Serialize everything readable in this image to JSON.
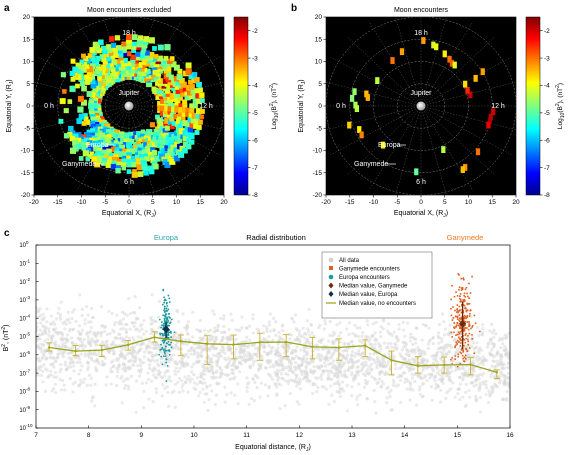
{
  "chart_data": [
    {
      "type": "heatmap",
      "panel": "a",
      "title": "Moon encounters excluded",
      "xlabel_main": "Equatorial X, (R",
      "xlabel_sub": "J",
      "ylabel_main": "Equatorial Y, (R",
      "ylabel_sub": "J",
      "xlim": [
        -20,
        20
      ],
      "ylim": [
        -20,
        20
      ],
      "ticks": [
        -20,
        -15,
        -10,
        -5,
        0,
        5,
        10,
        15,
        20
      ],
      "radial_rings": [
        5,
        10,
        15,
        20
      ],
      "local_time_labels": [
        "18 h",
        "0 h",
        "12 h",
        "6 h"
      ],
      "annotations": [
        "Jupiter",
        "Europa",
        "Ganymede"
      ],
      "colorbar": {
        "label_main": "Log",
        "label_sub": "10",
        "label_rest": "(B",
        "label_sup": "2",
        "label_end": "), (nT",
        "label_sup2": "2",
        "label_close": ")",
        "range": [
          -8,
          -1.5
        ],
        "ticks": [
          "-2",
          "-3",
          "-4",
          "-5",
          "-6",
          "-7",
          "-8"
        ]
      },
      "description_values": {
        "ring_inner_radius_RJ": 6,
        "ring_outer_radius_RJ": 16,
        "typical_log10_power": [
          -6,
          -3
        ]
      }
    },
    {
      "type": "heatmap",
      "panel": "b",
      "title": "Moon encounters",
      "xlabel_main": "Equatorial X, (R",
      "xlabel_sub": "J",
      "ylabel_main": "Equatorial Y, (R",
      "ylabel_sub": "J",
      "xlim": [
        -20,
        20
      ],
      "ylim": [
        -20,
        20
      ],
      "ticks": [
        -20,
        -15,
        -10,
        -5,
        0,
        5,
        10,
        15,
        20
      ],
      "radial_rings": [
        5,
        10,
        15,
        20
      ],
      "local_time_labels": [
        "18 h",
        "0 h",
        "12 h",
        "6 h"
      ],
      "annotations": [
        "Jupiter",
        "Europa",
        "Ganymede"
      ],
      "colorbar": {
        "label_main": "Log",
        "label_sub": "10",
        "label_rest": "(B",
        "label_sup": "2",
        "label_end": "), (nT",
        "label_sup2": "2",
        "label_close": ")",
        "range": [
          -8,
          -1.5
        ],
        "ticks": [
          "-2",
          "-3",
          "-4",
          "-5",
          "-6",
          "-7",
          "-8"
        ]
      }
    },
    {
      "type": "scatter",
      "panel": "c",
      "title_left": "Europa",
      "title_center": "Radial distribution",
      "title_right": "Ganymede",
      "xlabel_main": "Equatorial distance, (R",
      "xlabel_sub": "J",
      "ylabel_main": "B",
      "ylabel_sup": "2",
      "ylabel_end": ", (nT",
      "ylabel_sup2": "2",
      "ylabel_close": ")",
      "xlim": [
        7,
        16
      ],
      "xticks": [
        "7",
        "8",
        "9",
        "10",
        "11",
        "12",
        "13",
        "14",
        "15",
        "16"
      ],
      "ylim_exp": [
        -10,
        0
      ],
      "log_y": true,
      "yticks": [
        {
          "exp": 0,
          "label": "10"
        },
        {
          "exp": -1,
          "label": "10"
        },
        {
          "exp": -2,
          "label": "10"
        },
        {
          "exp": -3,
          "label": "10"
        },
        {
          "exp": -4,
          "label": "10"
        },
        {
          "exp": -5,
          "label": "10"
        },
        {
          "exp": -6,
          "label": "10"
        },
        {
          "exp": -7,
          "label": "10"
        },
        {
          "exp": -8,
          "label": "10"
        },
        {
          "exp": -9,
          "label": "10"
        },
        {
          "exp": -10,
          "label": "10"
        }
      ],
      "ytick_sup": [
        "0",
        "-1",
        "-2",
        "-3",
        "-4",
        "-5",
        "-6",
        "-7",
        "-8",
        "-9",
        "-10"
      ],
      "legend": [
        "All data",
        "Ganymede encounters",
        "Europa encounters",
        "Median value, Ganymede",
        "Median value, Europa",
        "Median value, no encounters"
      ],
      "median_series": {
        "name": "Median value, no encounters",
        "x": [
          7.25,
          7.75,
          8.25,
          8.75,
          9.25,
          9.75,
          10.25,
          10.75,
          11.25,
          11.75,
          12.25,
          12.75,
          13.25,
          13.75,
          14.25,
          14.75,
          15.25,
          15.75
        ],
        "y": [
          2.5e-06,
          1.6e-06,
          1.8e-06,
          3.5e-06,
          9e-06,
          5.5e-06,
          4e-06,
          3.6e-06,
          4.8e-06,
          5e-06,
          2.7e-06,
          2.5e-06,
          3.2e-06,
          5e-07,
          2.5e-07,
          2.8e-07,
          2.9e-07,
          1.1e-07
        ],
        "err_low": [
          1.6e-06,
          9e-07,
          8e-07,
          1.8e-06,
          5e-06,
          9e-07,
          3e-07,
          6e-07,
          5e-07,
          8e-07,
          6e-07,
          5e-07,
          8e-07,
          8e-08,
          1e-07,
          1e-07,
          8e-08,
          5e-08
        ],
        "err_high": [
          4.5e-06,
          3.2e-06,
          3.3e-06,
          6e-06,
          1.8e-05,
          1.2e-05,
          1.1e-05,
          1.2e-05,
          1.5e-05,
          1.3e-05,
          9e-06,
          7.5e-06,
          6.5e-06,
          1.6e-06,
          8e-07,
          7.5e-07,
          7e-07,
          1.5e-07
        ]
      },
      "europa_median": {
        "x": 9.47,
        "y": 2.5e-05,
        "err_low": 8e-06,
        "err_high": 6e-05
      },
      "ganymede_median": {
        "x": 15.1,
        "y": 5e-05,
        "err_low": 2e-06,
        "err_high": 0.0008
      }
    }
  ],
  "colors": {
    "all_data": "#d8d8d8",
    "ganymede": "#e06020",
    "europa": "#1a9aa0",
    "median_line": "#9aa51a",
    "median_err": "#c9b030",
    "title_europa": "#2aa6b0",
    "title_ganymede": "#f07820"
  },
  "panel_letters": [
    "a",
    "b",
    "c"
  ]
}
